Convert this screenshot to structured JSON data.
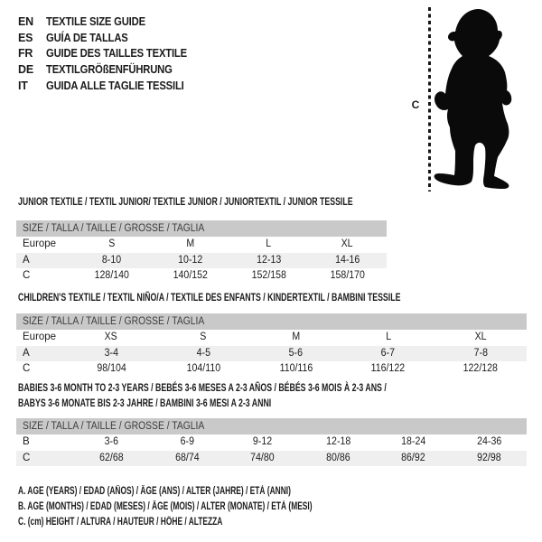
{
  "colors": {
    "background": "#ffffff",
    "header_bar": "#c9c9c9",
    "row_shade": "#efefef",
    "text": "#1b1b1b",
    "silhouette": "#0a0a0a"
  },
  "languages": [
    {
      "code": "EN",
      "title": "TEXTILE SIZE GUIDE"
    },
    {
      "code": "ES",
      "title": "GUÍA DE TALLAS"
    },
    {
      "code": "FR",
      "title": "GUIDE DES TAILLES TEXTILE"
    },
    {
      "code": "DE",
      "title": "TEXTILGRÖßENFÜHRUNG"
    },
    {
      "code": "IT",
      "title": "GUIDA ALLE TAGLIE TESSILI"
    }
  ],
  "figure": {
    "measure_label": "C"
  },
  "tables": [
    {
      "title_lines": [
        "JUNIOR TEXTILE / TEXTIL JUNIOR/ TEXTILE JUNIOR / JUNIORTEXTIL / JUNIOR TESSILE"
      ],
      "size_header": "SIZE / TALLA / TAILLE / GRÖSSE / TAGLIA",
      "rows": [
        {
          "label": "Europe",
          "shaded": false,
          "values": [
            "S",
            "M",
            "L",
            "XL"
          ]
        },
        {
          "label": "A",
          "shaded": true,
          "values": [
            "8-10",
            "10-12",
            "12-13",
            "14-16"
          ]
        },
        {
          "label": "C",
          "shaded": false,
          "values": [
            "128/140",
            "140/152",
            "152/158",
            "158/170"
          ]
        }
      ]
    },
    {
      "title_lines": [
        "CHILDREN'S TEXTILE / TEXTIL NIÑO/A / TEXTILE DES ENFANTS / KINDERTEXTIL / BAMBINI TESSILE"
      ],
      "size_header": "SIZE / TALLA / TAILLE / GRÖSSE / TAGLIA",
      "rows": [
        {
          "label": "Europe",
          "shaded": false,
          "values": [
            "XS",
            "S",
            "M",
            "L",
            "XL"
          ]
        },
        {
          "label": "A",
          "shaded": true,
          "values": [
            "3-4",
            "4-5",
            "5-6",
            "6-7",
            "7-8"
          ]
        },
        {
          "label": "C",
          "shaded": false,
          "values": [
            "98/104",
            "104/110",
            "110/116",
            "116/122",
            "122/128"
          ]
        }
      ]
    },
    {
      "title_lines": [
        "BABIES 3-6 MONTH TO 2-3 YEARS / BEBÉS 3-6 MESES A 2-3 AÑOS / BÉBÉS 3-6 MOIS À 2-3 ANS /",
        "BABYS 3-6 MONATE BIS 2-3 JAHRE / BAMBINI 3-6 MESI A 2-3 ANNI"
      ],
      "size_header": "SIZE / TALLA / TAILLE / GRÖSSE / TAGLIA",
      "rows": [
        {
          "label": "B",
          "shaded": false,
          "values": [
            "3-6",
            "6-9",
            "9-12",
            "12-18",
            "18-24",
            "24-36"
          ]
        },
        {
          "label": "C",
          "shaded": true,
          "values": [
            "62/68",
            "68/74",
            "74/80",
            "80/86",
            "86/92",
            "92/98"
          ]
        }
      ]
    }
  ],
  "footnotes": [
    "A. AGE (YEARS) / EDAD (AÑOS) / ÂGE (ANS) / ALTER (JAHRE) / ETÀ (ANNI)",
    "B. AGE (MONTHS) / EDAD (MESES) / ÂGE (MOIS) / ALTER (MONATE) / ETÀ (MESI)",
    "C. (cm) HEIGHT / ALTURA / HAUTEUR / HÖHE / ALTEZZA"
  ]
}
